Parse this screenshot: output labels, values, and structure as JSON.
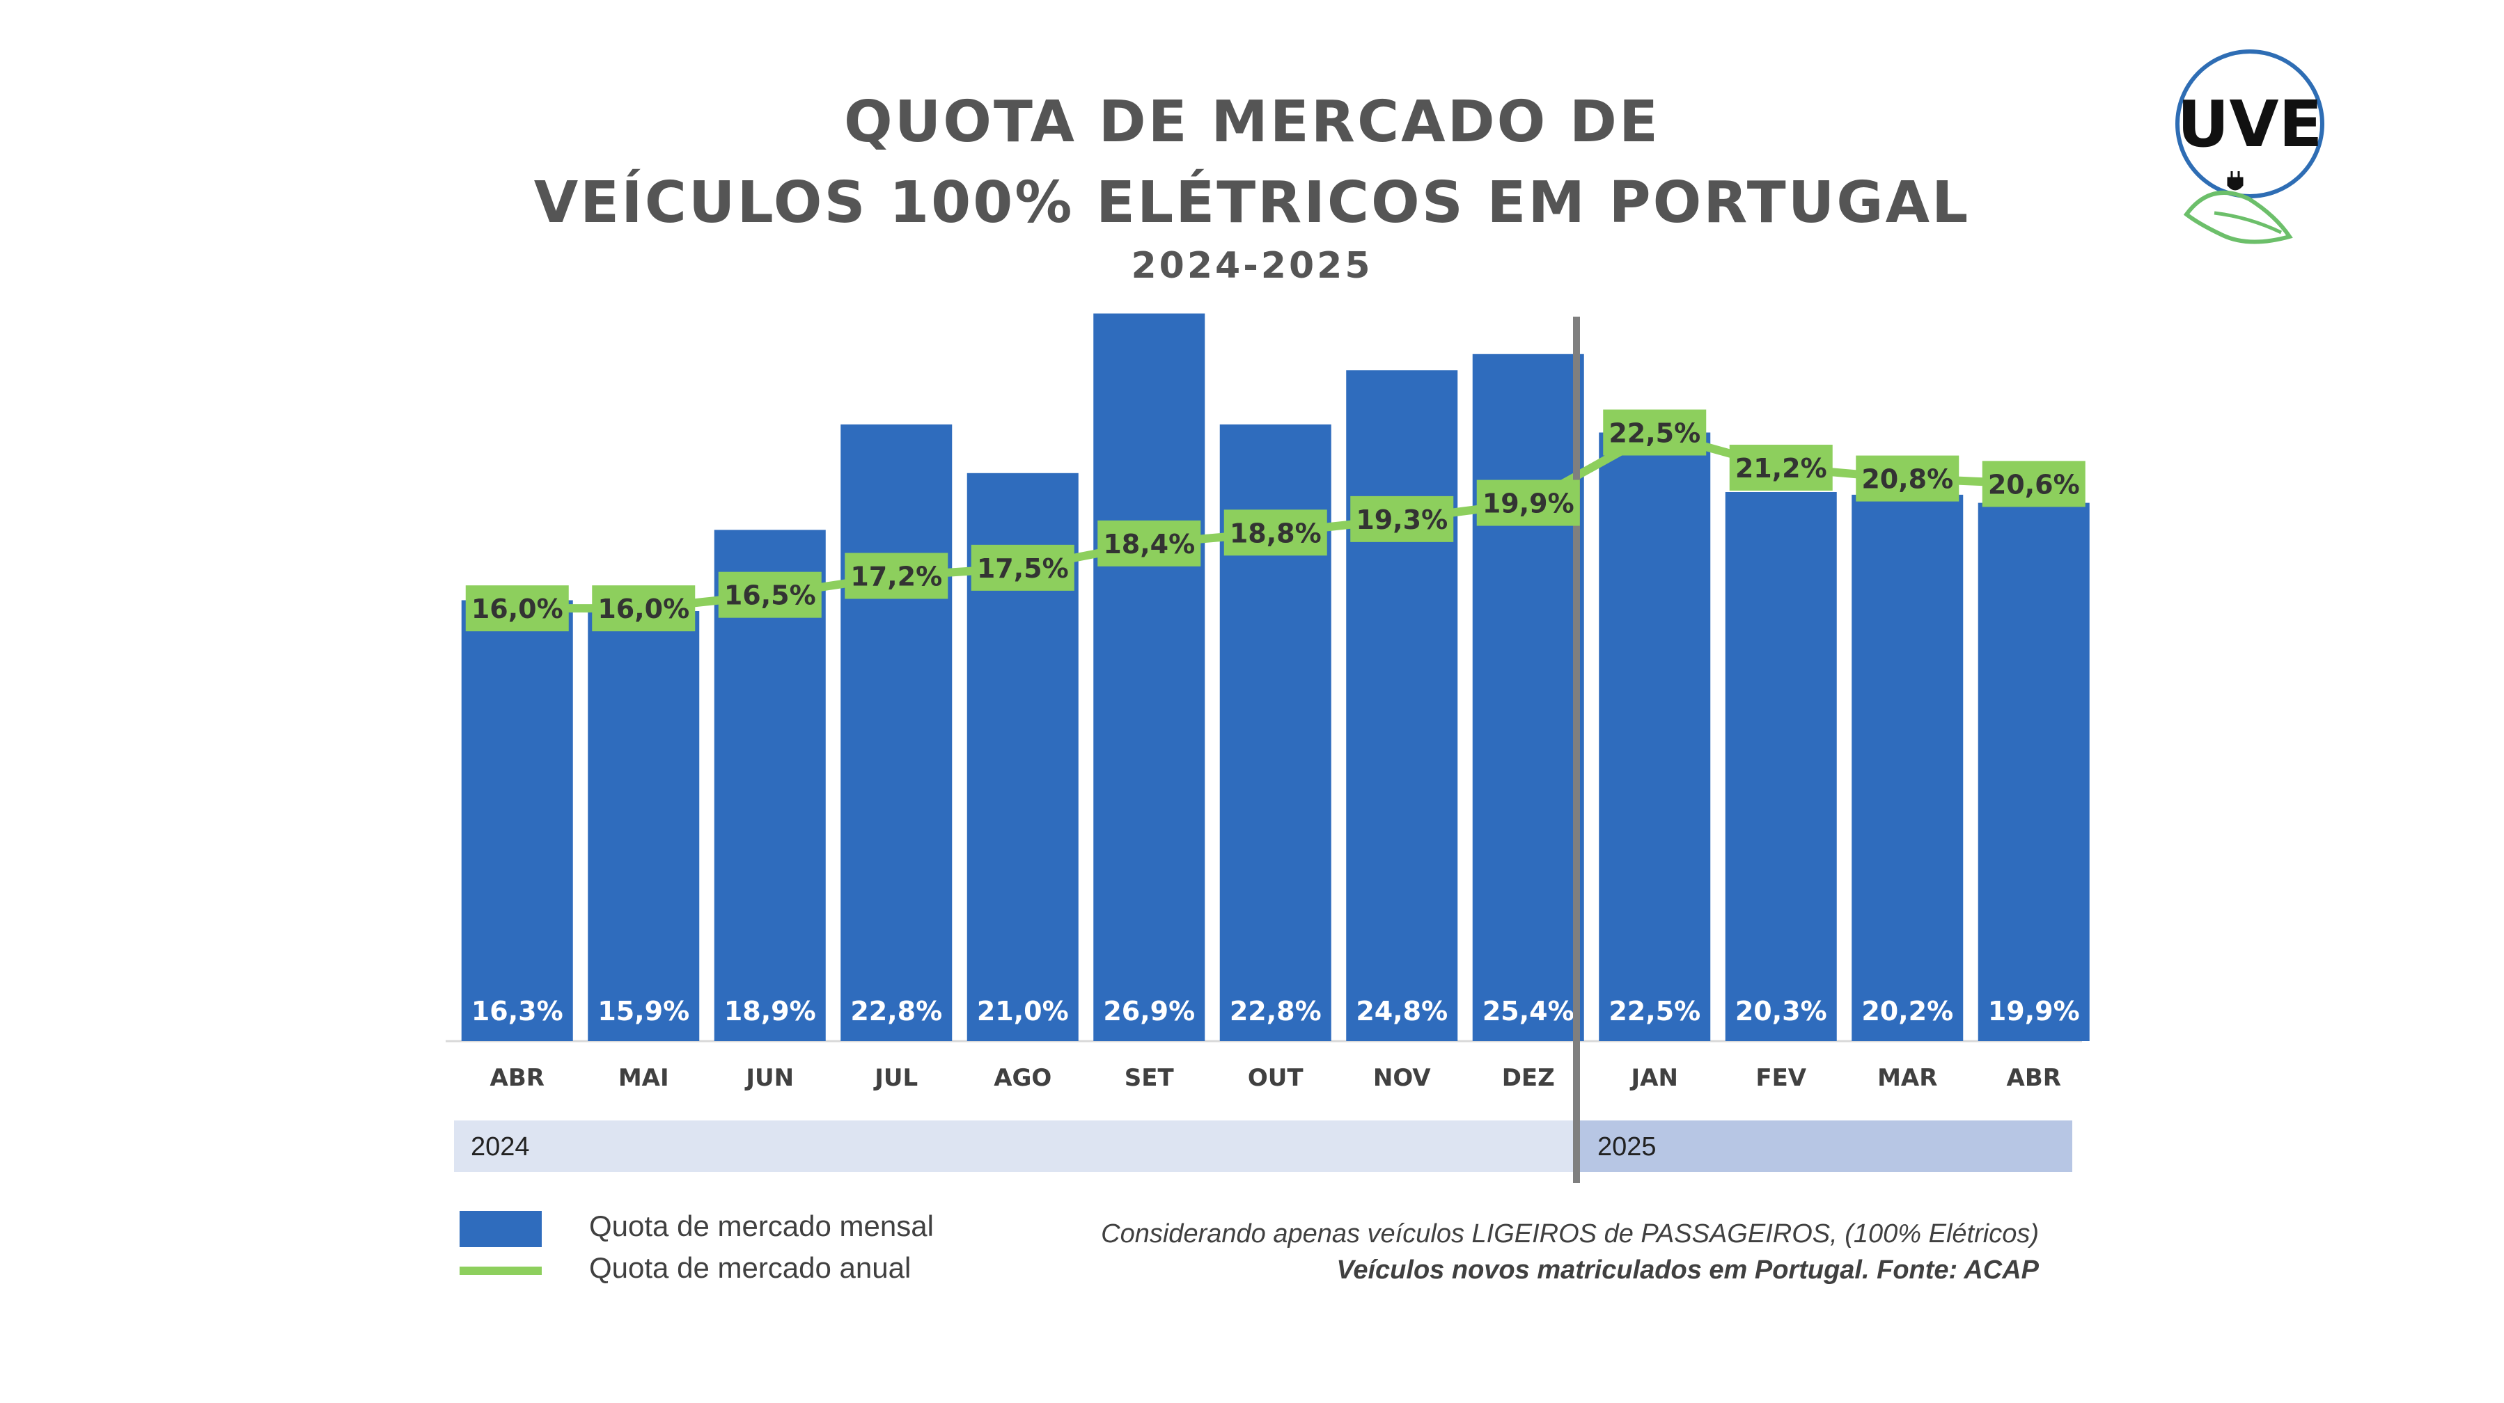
{
  "header": {
    "title_line1": "QUOTA DE MERCADO DE",
    "title_line2": "VEÍCULOS 100% ELÉTRICOS EM PORTUGAL",
    "subtitle": "2024-2025"
  },
  "logo": {
    "text": "UVE",
    "icon": "plug-leaf-logo-icon",
    "ring_color": "#2e6db4",
    "leaf_color": "#6cbf6a"
  },
  "colors": {
    "bar": "#2f6cbd",
    "line": "#8dcf5d",
    "year_2024_bg": "#dde4f2",
    "year_2025_bg": "#b7c6e4",
    "divider": "#7f7f7f",
    "text": "#404040",
    "title": "#555555"
  },
  "chart_data": {
    "type": "bar",
    "categories": [
      "ABR",
      "MAI",
      "JUN",
      "JUL",
      "AGO",
      "SET",
      "OUT",
      "NOV",
      "DEZ",
      "JAN",
      "FEV",
      "MAR",
      "ABR"
    ],
    "groups": [
      {
        "label": "2024",
        "start_index": 0,
        "end_index": 8
      },
      {
        "label": "2025",
        "start_index": 9,
        "end_index": 12
      }
    ],
    "series": [
      {
        "name": "Quota de mercado mensal",
        "type": "bar",
        "values": [
          16.3,
          15.9,
          18.9,
          22.8,
          21.0,
          26.9,
          22.8,
          24.8,
          25.4,
          22.5,
          20.3,
          20.2,
          19.9
        ],
        "labels": [
          "16,3%",
          "15,9%",
          "18,9%",
          "22,8%",
          "21,0%",
          "26,9%",
          "22,8%",
          "24,8%",
          "25,4%",
          "22,5%",
          "20,3%",
          "20,2%",
          "19,9%"
        ]
      },
      {
        "name": "Quota de mercado anual",
        "type": "line",
        "values": [
          16.0,
          16.0,
          16.5,
          17.2,
          17.5,
          18.4,
          18.8,
          19.3,
          19.9,
          22.5,
          21.2,
          20.8,
          20.6
        ],
        "labels": [
          "16,0%",
          "16,0%",
          "16,5%",
          "17,2%",
          "17,5%",
          "18,4%",
          "18,8%",
          "19,3%",
          "19,9%",
          "22,5%",
          "21,2%",
          "20,8%",
          "20,6%"
        ]
      }
    ],
    "ylim": [
      0,
      30
    ],
    "grid": false,
    "legend_position": "bottom-left"
  },
  "legend": {
    "items": [
      {
        "label": "Quota de mercado mensal",
        "kind": "bar"
      },
      {
        "label": "Quota de mercado anual",
        "kind": "line"
      }
    ]
  },
  "notes": {
    "line1": "Considerando apenas veículos LIGEIROS de PASSAGEIROS, (100% Elétricos)",
    "line2": "Veículos novos matriculados em Portugal. Fonte: ACAP"
  }
}
